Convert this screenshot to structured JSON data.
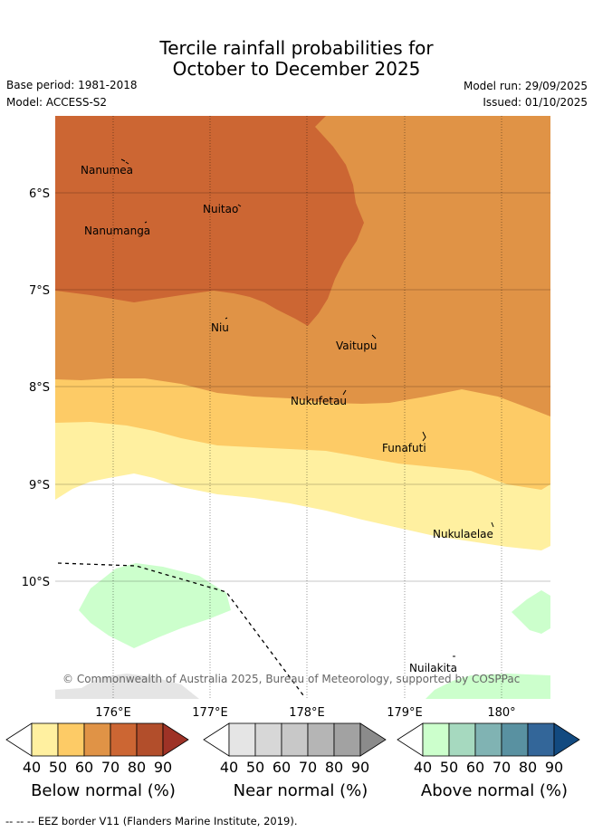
{
  "title": {
    "line1": "Tercile rainfall probabilities for",
    "line2": "October to December 2025"
  },
  "meta": {
    "base_period": "Base period: 1981-2018",
    "model": "Model: ACCESS-S2",
    "model_run": "Model run: 29/09/2025",
    "issued": "Issued: 01/10/2025"
  },
  "map": {
    "lat_labels": [
      "6°S",
      "7°S",
      "8°S",
      "9°S",
      "10°S"
    ],
    "lon_labels": [
      "176°E",
      "177°E",
      "178°E",
      "179°E",
      "180°"
    ],
    "places": [
      {
        "name": "Nanumea"
      },
      {
        "name": "Nuitao"
      },
      {
        "name": "Nanumanga"
      },
      {
        "name": "Niu"
      },
      {
        "name": "Vaitupu"
      },
      {
        "name": "Nukufetau"
      },
      {
        "name": "Funafuti"
      },
      {
        "name": "Nukulaelae"
      },
      {
        "name": "Nuilakita"
      }
    ],
    "credit": "© Commonwealth of Australia 2025, Bureau of Meteorology, supported by COSPPac",
    "colors": {
      "below_80": "#cc6633",
      "below_60": "#e09346",
      "below_50": "#fdcb66",
      "below_40": "#fff0a0",
      "above_40": "#ccffcc",
      "near_40": "#e5e5e5"
    }
  },
  "colorbars": [
    {
      "title": "Below normal (%)",
      "ticks": [
        "40",
        "50",
        "60",
        "70",
        "80",
        "90"
      ],
      "colors": [
        "#fff0a0",
        "#fdcb66",
        "#e09346",
        "#cc6633",
        "#b24e2b",
        "#9e3226"
      ]
    },
    {
      "title": "Near normal (%)",
      "ticks": [
        "40",
        "50",
        "60",
        "70",
        "80",
        "90"
      ],
      "colors": [
        "#e5e5e5",
        "#d7d7d7",
        "#c8c8c8",
        "#b5b5b5",
        "#a2a2a2",
        "#8b8b8b"
      ]
    },
    {
      "title": "Above normal (%)",
      "ticks": [
        "40",
        "50",
        "60",
        "70",
        "80",
        "90"
      ],
      "colors": [
        "#ccffcc",
        "#a6d9bf",
        "#80b3b3",
        "#5991a1",
        "#336699",
        "#124a80"
      ]
    }
  ],
  "footnote": "-- -- -- EEZ border V11 (Flanders Marine Institute, 2019)."
}
